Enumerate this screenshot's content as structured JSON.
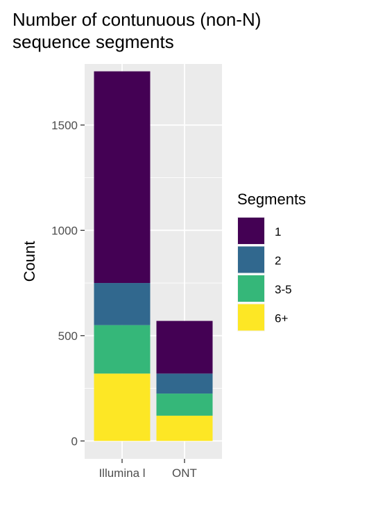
{
  "chart_data": {
    "type": "bar",
    "stacked": true,
    "title_lines": [
      "Number of contunuous (non-N)",
      "sequence segments"
    ],
    "xlabel": "",
    "ylabel": "Count",
    "categories": [
      "Illumina l",
      "ONT"
    ],
    "ylim": [
      -85,
      1790
    ],
    "yticks": [
      0,
      500,
      1000,
      1500
    ],
    "grid": true,
    "legend": {
      "title": "Segments",
      "position": "right"
    },
    "series": [
      {
        "name": "6+",
        "color": "#FDE725",
        "values": [
          320,
          120
        ]
      },
      {
        "name": "3-5",
        "color": "#35B779",
        "values": [
          230,
          105
        ]
      },
      {
        "name": "2",
        "color": "#31688E",
        "values": [
          200,
          95
        ]
      },
      {
        "name": "1",
        "color": "#440154",
        "values": [
          1005,
          250
        ]
      }
    ]
  }
}
